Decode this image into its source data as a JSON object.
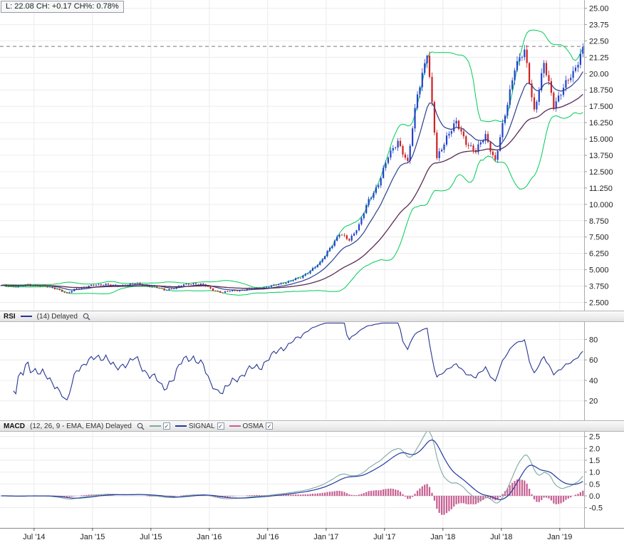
{
  "colors": {
    "up_candle": "#2244cc",
    "down_candle": "#cc2222",
    "bollinger": "#00cc55",
    "ma_fast": "#2c3e8c",
    "ma_slow": "#5c2a52",
    "rsi_line": "#283593",
    "macd_line": "#7fa8a4",
    "signal_line": "#2439a0",
    "osma_bar": "#c75f92",
    "grid": "#ececec",
    "zero_grid": "#d4d4d4",
    "axis_text": "#222222",
    "last_price_line": "#777777"
  },
  "price_panel": {
    "info_label": "L: 22.08 CH: +0.17 CH%: 0.78%",
    "y_ticks": [
      "25.00",
      "23.75",
      "22.50",
      "21.25",
      "20.00",
      "18.750",
      "17.500",
      "16.250",
      "15.000",
      "13.750",
      "12.500",
      "11.250",
      "10.000",
      "8.750",
      "7.500",
      "6.250",
      "5.000",
      "3.750",
      "2.500"
    ],
    "y_max": 25.625,
    "y_min": 1.875
  },
  "rsi_panel": {
    "title": "RSI",
    "params": "(14) Delayed",
    "y_ticks": [
      80,
      60,
      40,
      20
    ],
    "y_max": 97,
    "y_min": 1
  },
  "macd_panel": {
    "title": "MACD",
    "params": "(12, 26, 9 - EMA, EMA) Delayed",
    "legend": [
      {
        "label": "",
        "color": "#7fa8a4"
      },
      {
        "label": "SIGNAL",
        "color": "#2439a0"
      },
      {
        "label": "OSMA",
        "color": "#c75f92"
      }
    ],
    "y_ticks": [
      "2.5",
      "2.0",
      "1.5",
      "1.0",
      "0.5",
      "0.0",
      "-0.5"
    ],
    "y_max": 2.7,
    "y_min": -1.35
  },
  "x_axis": {
    "labels": [
      "Jul '14",
      "Jan '15",
      "Jul '15",
      "Jan '16",
      "Jul '16",
      "Jan '17",
      "Jul '17",
      "Jan '18",
      "Jul '18",
      "Jan '19"
    ],
    "label_month_indices": [
      3,
      9,
      15,
      21,
      27,
      33,
      39,
      45,
      51,
      57
    ]
  },
  "icons": {
    "check": "✓"
  },
  "chart_data": {
    "type": "candlestick",
    "frequency": "monthly",
    "start_month": "2014-04",
    "monthly_close": [
      3.78,
      3.72,
      3.85,
      3.8,
      3.7,
      3.55,
      3.15,
      3.6,
      3.7,
      3.85,
      3.9,
      3.75,
      3.85,
      3.95,
      3.8,
      3.7,
      3.45,
      3.6,
      3.85,
      3.95,
      3.85,
      3.45,
      3.25,
      3.4,
      3.45,
      3.55,
      3.6,
      3.75,
      3.95,
      4.15,
      4.4,
      4.95,
      5.5,
      6.7,
      7.7,
      7.3,
      8.4,
      10.3,
      11.6,
      13.6,
      14.9,
      13.1,
      18.5,
      21.6,
      13.5,
      15.2,
      16.2,
      14.8,
      14.0,
      15.3,
      13.3,
      16.8,
      20.6,
      21.6,
      17.2,
      20.7,
      17.6,
      19.0,
      19.9,
      22.08
    ],
    "last": {
      "price": 22.08,
      "change": "+0.17",
      "change_pct": "0.78%"
    },
    "overlays": {
      "bollinger": {
        "period": 20,
        "stddev": 2
      },
      "ema_fast": 13,
      "ema_slow": 45
    },
    "indicators": {
      "rsi_period": 14,
      "macd": [
        12,
        26,
        9
      ]
    }
  }
}
